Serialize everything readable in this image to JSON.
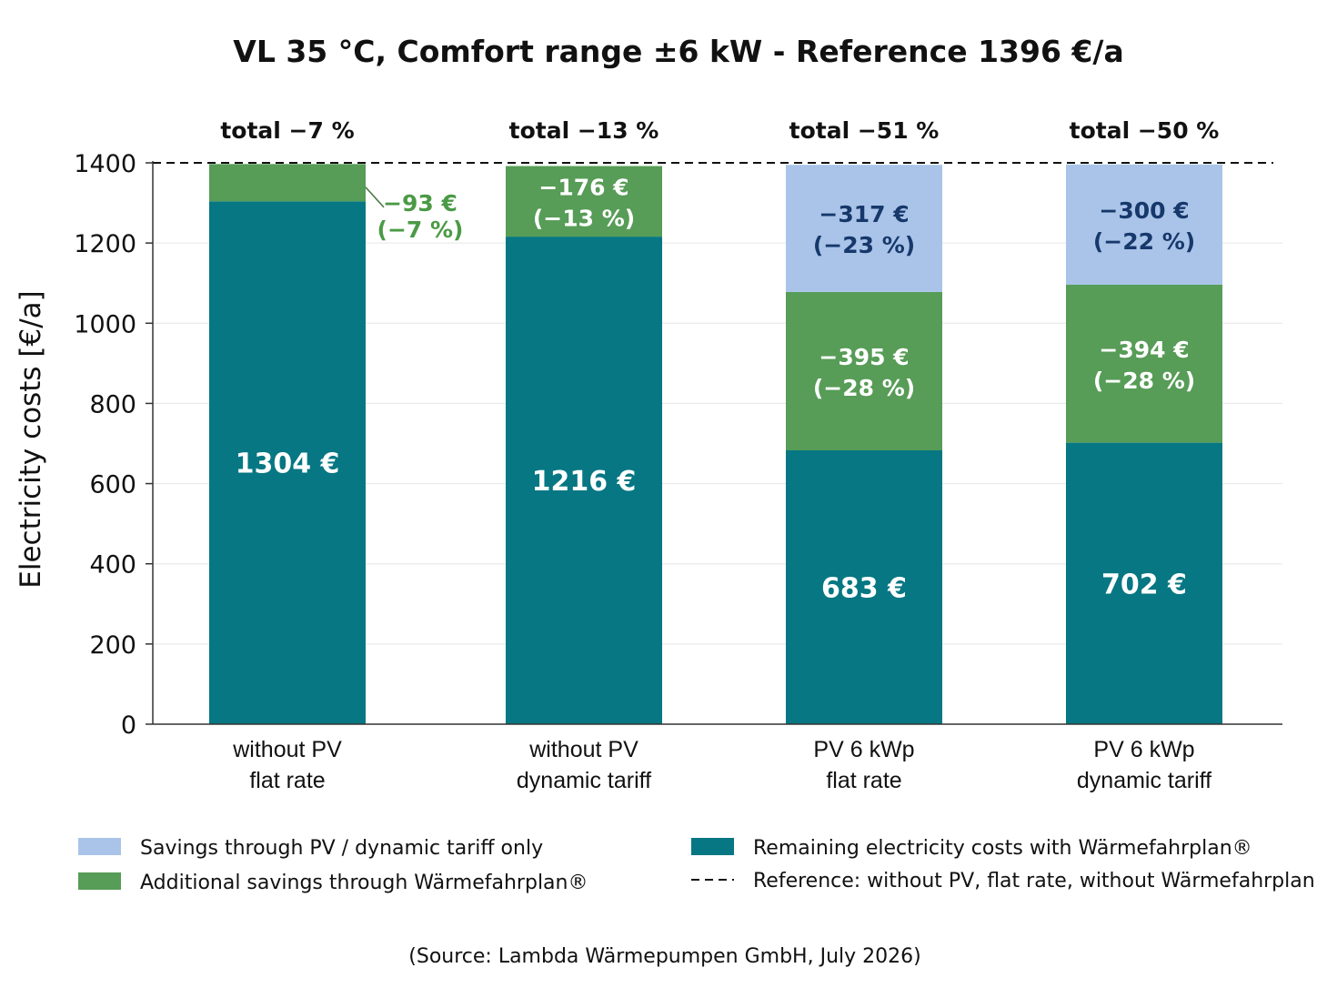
{
  "chart_data": {
    "type": "bar",
    "stacked": true,
    "title": "VL 35 °C, Comfort range ±6 kW  -  Reference 1396 €/a",
    "ylabel": "Electricity costs [€/a]",
    "xlabel": "",
    "ylim": [
      0,
      1400
    ],
    "yticks": [
      "0",
      "200",
      "400",
      "600",
      "800",
      "1000",
      "1200",
      "1400"
    ],
    "grid": true,
    "reference_value": 1396,
    "categories": [
      [
        "without PV",
        "flat rate"
      ],
      [
        "without PV",
        "dynamic tariff"
      ],
      [
        "PV 6 kWp",
        "flat rate"
      ],
      [
        "PV 6 kWp",
        "dynamic tariff"
      ]
    ],
    "totals": [
      "total −7 %",
      "total −13 %",
      "total −51 %",
      "total −50 %"
    ],
    "series": [
      {
        "name": "Remaining electricity costs with Wärmefahrplan®",
        "color": "#067783",
        "values": [
          1304,
          1216,
          683,
          702
        ],
        "labels": [
          "1304 €",
          "1216 €",
          "683 €",
          "702 €"
        ]
      },
      {
        "name": "Additional savings through Wärmefahrplan®",
        "color": "#579c57",
        "values": [
          93,
          176,
          395,
          394
        ],
        "labels": [
          [
            "−93 €",
            "(−7 %)"
          ],
          [
            "−176 €",
            "(−13 %)"
          ],
          [
            "−395 €",
            "(−28 %)"
          ],
          [
            "−394 €",
            "(−28 %)"
          ]
        ]
      },
      {
        "name": "Savings through PV / dynamic tariff only",
        "color": "#a9c4e8",
        "values": [
          0,
          0,
          317,
          300
        ],
        "labels": [
          null,
          null,
          [
            "−317 €",
            "(−23 %)"
          ],
          [
            "−300 €",
            "(−22 %)"
          ]
        ]
      }
    ],
    "legend": {
      "placement": "bottom",
      "items": [
        {
          "label": "Savings through PV / dynamic tariff only",
          "kind": "box",
          "color": "#a9c4e8"
        },
        {
          "label": "Additional savings through Wärmefahrplan®",
          "kind": "box",
          "color": "#579c57"
        },
        {
          "label": "Remaining electricity costs with Wärmefahrplan®",
          "kind": "box",
          "color": "#067783"
        },
        {
          "label": "Reference: without PV, flat rate, without Wärmefahrplan®",
          "kind": "dash",
          "color": "#111111"
        }
      ]
    },
    "source": "(Source: Lambda Wärmepumpen GmbH, July 2026)",
    "colors": {
      "green_label": "#4a9a45",
      "blue_label": "#17386b",
      "white_label": "#ffffff"
    }
  }
}
